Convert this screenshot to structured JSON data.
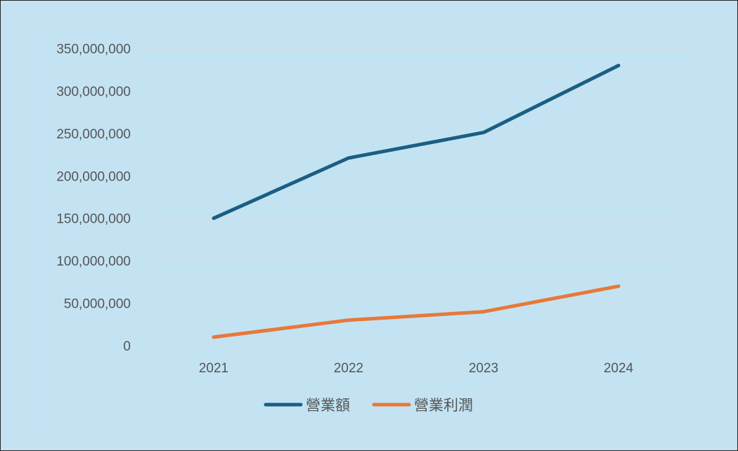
{
  "chart_data": {
    "type": "line",
    "categories": [
      "2021",
      "2022",
      "2023",
      "2024"
    ],
    "series": [
      {
        "name": "營業額",
        "values": [
          150000000,
          221000000,
          251000000,
          330000000
        ],
        "color": "#1b5e84"
      },
      {
        "name": "營業利潤",
        "values": [
          10000000,
          30000000,
          40000000,
          70000000
        ],
        "color": "#e8783a"
      }
    ],
    "ylim": [
      0,
      350000000
    ],
    "yticks": [
      0,
      50000000,
      100000000,
      150000000,
      200000000,
      250000000,
      300000000,
      350000000
    ],
    "ytick_labels": [
      "0",
      "50,000,000",
      "100,000,000",
      "150,000,000",
      "200,000,000",
      "250,000,000",
      "300,000,000",
      "350,000,000"
    ],
    "grid": true,
    "legend_position": "bottom"
  }
}
